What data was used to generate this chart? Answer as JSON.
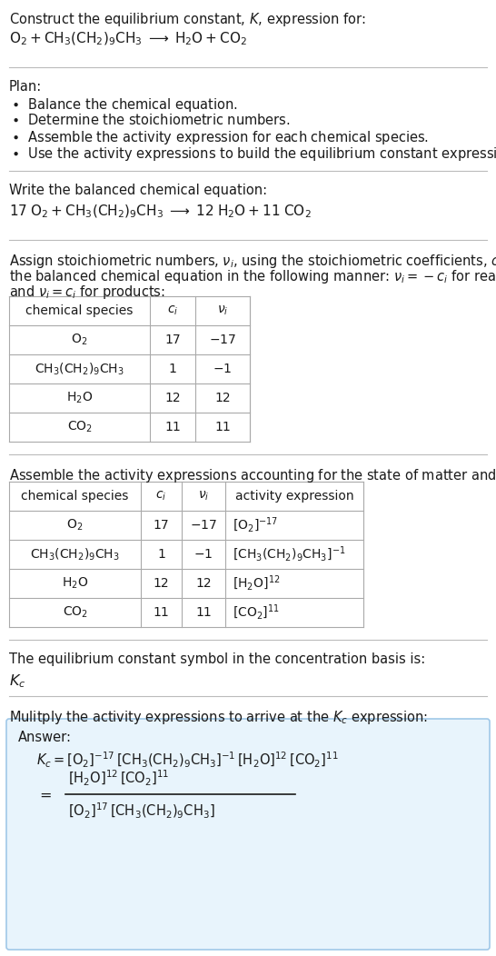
{
  "bg_color": "#ffffff",
  "text_color": "#1a1a1a",
  "fs": 10.5,
  "fs_t": 10.0,
  "table1_data": [
    [
      "$\\mathrm{O_2}$",
      "17",
      "$-17$"
    ],
    [
      "$\\mathrm{CH_3(CH_2)_9CH_3}$",
      "1",
      "$-1$"
    ],
    [
      "$\\mathrm{H_2O}$",
      "12",
      "12"
    ],
    [
      "$\\mathrm{CO_2}$",
      "11",
      "11"
    ]
  ],
  "table2_data": [
    [
      "$\\mathrm{O_2}$",
      "17",
      "$-17$",
      "$[\\mathrm{O_2}]^{-17}$"
    ],
    [
      "$\\mathrm{CH_3(CH_2)_9CH_3}$",
      "1",
      "$-1$",
      "$[\\mathrm{CH_3(CH_2)_9CH_3}]^{-1}$"
    ],
    [
      "$\\mathrm{H_2O}$",
      "12",
      "12",
      "$[\\mathrm{H_2O}]^{12}$"
    ],
    [
      "$\\mathrm{CO_2}$",
      "11",
      "11",
      "$[\\mathrm{CO_2}]^{11}$"
    ]
  ],
  "answer_box_color": "#e8f4fc",
  "answer_box_border": "#a0c8e8",
  "line_color": "#bbbbbb"
}
